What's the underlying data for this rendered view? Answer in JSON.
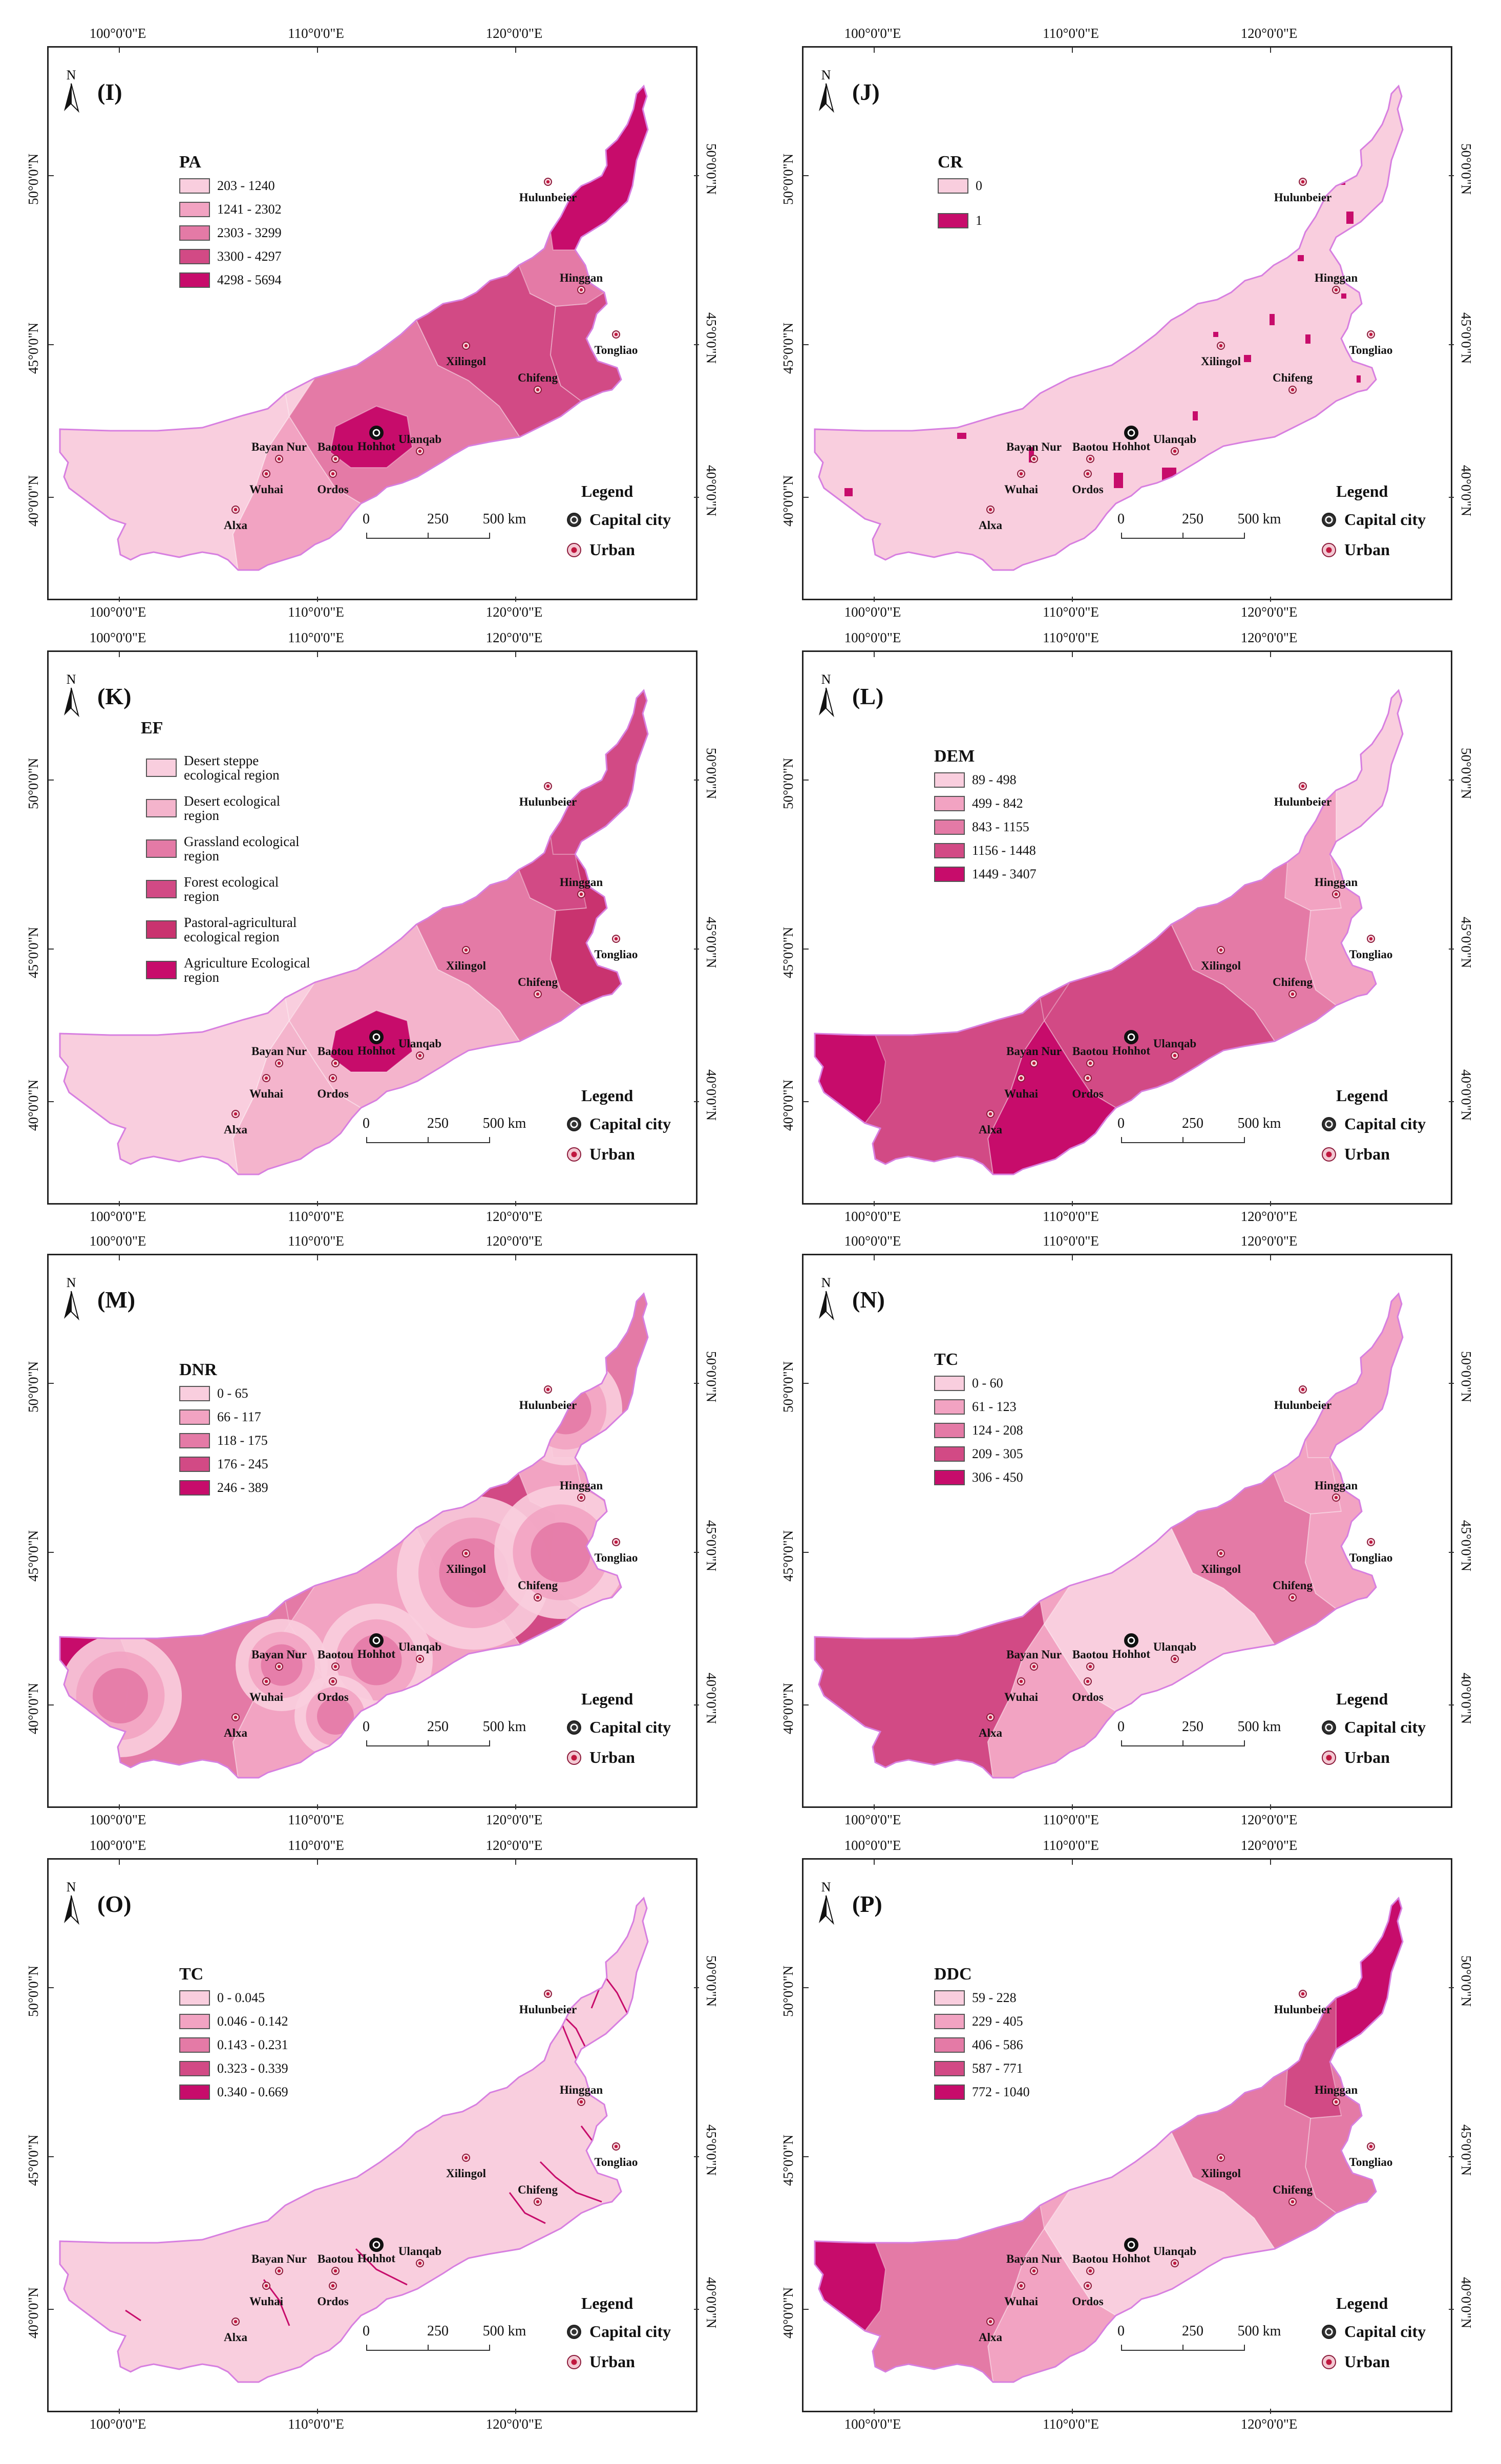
{
  "figure": {
    "axes": {
      "longitudes": [
        "100°0'0\"E",
        "110°0'0\"E",
        "120°0'0\"E"
      ],
      "latitudes": [
        "50°0'0\"N",
        "45°0'0\"N",
        "40°0'0\"N"
      ]
    },
    "common_legend": {
      "title": "Legend",
      "capital_label": "Capital city",
      "urban_label": "Urban"
    },
    "scale_bar": {
      "ticks": [
        "0",
        "250",
        "500 km"
      ]
    },
    "north_label": "N",
    "cities": [
      "Hulunbeier",
      "Hinggan",
      "Tongliao",
      "Xilingol",
      "Chifeng",
      "Ulanqab",
      "Baotou",
      "Bayan Nur",
      "Hohhot",
      "Wuhai",
      "Ordos",
      "Alxa"
    ],
    "colors": {
      "c1": "#f9cede",
      "c2": "#f2a3c2",
      "c3": "#e47aa6",
      "c4": "#d24a85",
      "c5": "#c70c6b",
      "outline": "#d77fe0"
    }
  },
  "panels": [
    {
      "id": "I",
      "label": "(I)",
      "legend_title": "PA",
      "classes": [
        "203 - 1240",
        "1241 - 2302",
        "2303 - 3299",
        "3300 - 4297",
        "4298 - 5694"
      ]
    },
    {
      "id": "J",
      "label": "(J)",
      "legend_title": "CR",
      "classes": [
        "0",
        "1"
      ]
    },
    {
      "id": "K",
      "label": "(K)",
      "legend_title": "EF",
      "classes": [
        [
          "Desert steppe",
          "ecological region"
        ],
        [
          "Desert ecological",
          "region"
        ],
        [
          "Grassland ecological",
          "region"
        ],
        [
          "Forest ecological",
          " region"
        ],
        [
          "Pastoral-agricultural",
          " ecological region"
        ],
        [
          "Agriculture Ecological",
          "region"
        ]
      ]
    },
    {
      "id": "L",
      "label": "(L)",
      "legend_title": "DEM",
      "classes": [
        "89 - 498",
        "499 - 842",
        "843 - 1155",
        "1156 - 1448",
        "1449 - 3407"
      ]
    },
    {
      "id": "M",
      "label": "(M)",
      "legend_title": "DNR",
      "classes": [
        "0 - 65",
        "66 - 117",
        "118 - 175",
        "176 - 245",
        "246 - 389"
      ]
    },
    {
      "id": "N",
      "label": "(N)",
      "legend_title": "TC",
      "classes": [
        "0 - 60",
        "61 - 123",
        "124 - 208",
        "209 - 305",
        "306 - 450"
      ]
    },
    {
      "id": "O",
      "label": "(O)",
      "legend_title": "TC",
      "classes": [
        "0 - 0.045",
        "0.046 - 0.142",
        "0.143 - 0.231",
        "0.323 - 0.339",
        "0.340 - 0.669"
      ]
    },
    {
      "id": "P",
      "label": "(P)",
      "legend_title": "DDC",
      "classes": [
        "59 - 228",
        "229 - 405",
        "406 - 586",
        "587 - 771",
        "772 - 1040"
      ]
    }
  ]
}
